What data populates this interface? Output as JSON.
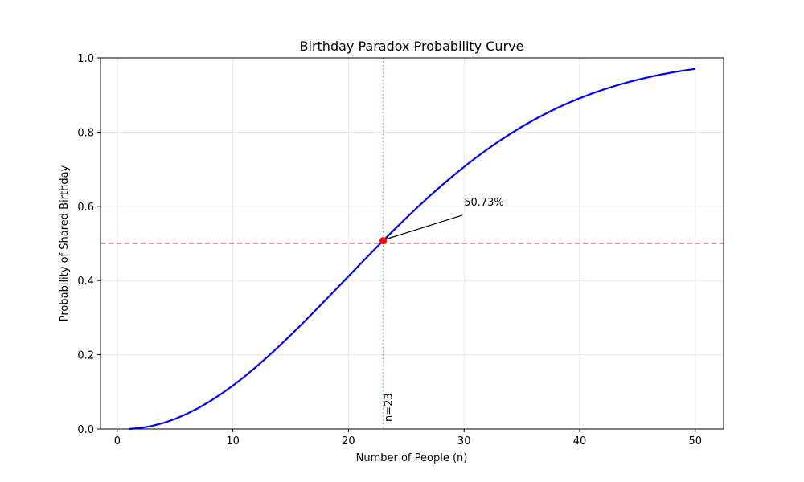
{
  "chart_data": {
    "type": "line",
    "title": "Birthday Paradox Probability Curve",
    "xlabel": "Number of People (n)",
    "ylabel": "Probability of Shared Birthday",
    "xlim": [
      -1.45,
      52.45
    ],
    "ylim": [
      0.0,
      1.0
    ],
    "xticks": [
      0,
      10,
      20,
      30,
      40,
      50
    ],
    "xtick_labels": [
      "0",
      "10",
      "20",
      "30",
      "40",
      "50"
    ],
    "yticks": [
      0.0,
      0.2,
      0.4,
      0.6,
      0.8,
      1.0
    ],
    "ytick_labels": [
      "0.0",
      "0.2",
      "0.4",
      "0.6",
      "0.8",
      "1.0"
    ],
    "grid": true,
    "series": [
      {
        "color": "#0000ff",
        "x": [
          1,
          2,
          3,
          4,
          5,
          6,
          7,
          8,
          9,
          10,
          11,
          12,
          13,
          14,
          15,
          16,
          17,
          18,
          19,
          20,
          21,
          22,
          23,
          24,
          25,
          26,
          27,
          28,
          29,
          30,
          31,
          32,
          33,
          34,
          35,
          36,
          37,
          38,
          39,
          40,
          41,
          42,
          43,
          44,
          45,
          46,
          47,
          48,
          49,
          50
        ],
        "y": [
          0.0,
          0.0027,
          0.0082,
          0.0164,
          0.0271,
          0.0405,
          0.0562,
          0.0743,
          0.0946,
          0.1169,
          0.1411,
          0.167,
          0.1944,
          0.2231,
          0.2529,
          0.2836,
          0.315,
          0.3469,
          0.3791,
          0.4114,
          0.4437,
          0.4757,
          0.5073,
          0.5383,
          0.5687,
          0.5982,
          0.6269,
          0.6545,
          0.681,
          0.7063,
          0.7305,
          0.7533,
          0.775,
          0.7953,
          0.8144,
          0.8322,
          0.8487,
          0.8641,
          0.8782,
          0.8912,
          0.9032,
          0.914,
          0.9239,
          0.9329,
          0.941,
          0.9483,
          0.9548,
          0.9606,
          0.9658,
          0.9704
        ]
      }
    ],
    "reference_lines": {
      "horizontal": {
        "y": 0.5,
        "color": "#ff0000",
        "style": "dashed"
      },
      "vertical": {
        "x": 23,
        "color": "#008000",
        "style": "dotted",
        "label": "n=23"
      }
    },
    "highlight_point": {
      "x": 23,
      "y": 0.5073,
      "color": "#ff0000"
    },
    "annotation": {
      "text": "50.73%",
      "text_x": 30,
      "text_y": 0.6,
      "target_x": 23,
      "target_y": 0.5073
    }
  }
}
